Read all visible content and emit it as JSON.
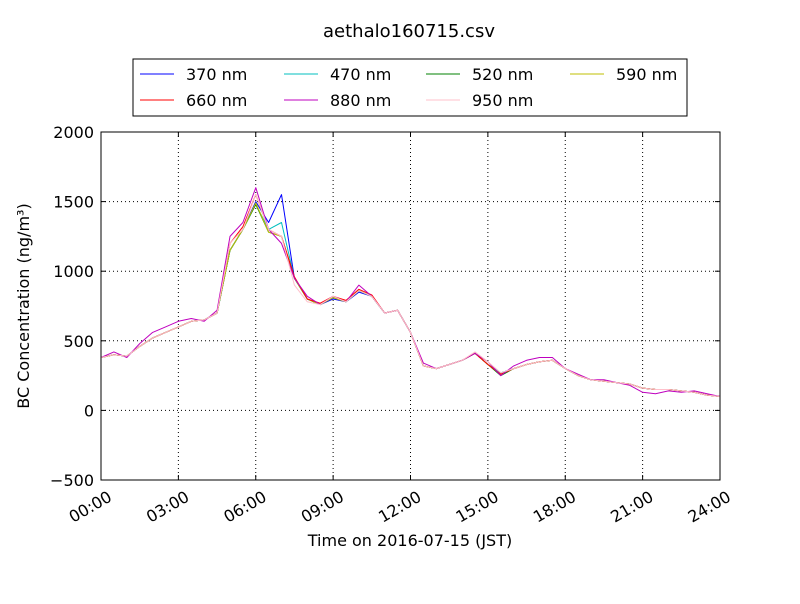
{
  "chart_data": {
    "type": "line",
    "title": "aethalo160715.csv",
    "xlabel": "Time on 2016-07-15 (JST)",
    "ylabel": "BC Concentration (ng/m³)",
    "x_unit": "hours",
    "xlim": [
      0,
      24
    ],
    "ylim": [
      -500,
      2000
    ],
    "x_ticks": [
      0,
      3,
      6,
      9,
      12,
      15,
      18,
      21,
      24
    ],
    "x_tick_labels": [
      "00:00",
      "03:00",
      "06:00",
      "09:00",
      "12:00",
      "15:00",
      "18:00",
      "21:00",
      "24:00"
    ],
    "y_ticks": [
      -500,
      0,
      500,
      1000,
      1500,
      2000
    ],
    "y_tick_labels": [
      "−500",
      "0",
      "500",
      "1000",
      "1500",
      "2000"
    ],
    "grid": true,
    "legend_placement": "top-center",
    "legend_columns": 4,
    "x": [
      0,
      0.5,
      1,
      1.5,
      2,
      2.5,
      3,
      3.5,
      4,
      4.5,
      5,
      5.5,
      6,
      6.5,
      7,
      7.5,
      8,
      8.5,
      9,
      9.5,
      10,
      10.5,
      11,
      11.5,
      12,
      12.5,
      13,
      13.5,
      14,
      14.5,
      15,
      15.5,
      16,
      16.5,
      17,
      17.5,
      18,
      18.5,
      19,
      19.5,
      20,
      20.5,
      21,
      21.5,
      22,
      22.5,
      23,
      23.5,
      24
    ],
    "series": [
      {
        "name": "370 nm",
        "color": "#0000ff",
        "values": [
          380,
          400,
          390,
          460,
          520,
          560,
          600,
          640,
          650,
          700,
          1150,
          1300,
          1500,
          1350,
          1550,
          950,
          800,
          760,
          800,
          780,
          850,
          820,
          700,
          720,
          560,
          320,
          300,
          330,
          360,
          410,
          330,
          270,
          300,
          330,
          350,
          360,
          300,
          250,
          220,
          210,
          200,
          190,
          160,
          150,
          150,
          140,
          130,
          110,
          100
        ]
      },
      {
        "name": "470 nm",
        "color": "#00bfbf",
        "values": [
          380,
          400,
          390,
          460,
          520,
          560,
          600,
          640,
          650,
          700,
          1150,
          1300,
          1480,
          1300,
          1350,
          950,
          800,
          760,
          810,
          780,
          860,
          820,
          700,
          720,
          560,
          320,
          300,
          330,
          360,
          410,
          330,
          270,
          300,
          330,
          350,
          360,
          300,
          250,
          220,
          210,
          200,
          190,
          160,
          150,
          150,
          140,
          130,
          110,
          100
        ]
      },
      {
        "name": "520 nm",
        "color": "#008000",
        "values": [
          380,
          400,
          390,
          460,
          520,
          560,
          600,
          640,
          650,
          700,
          1150,
          1300,
          1480,
          1280,
          1250,
          950,
          800,
          760,
          810,
          780,
          860,
          820,
          700,
          720,
          560,
          320,
          300,
          330,
          360,
          410,
          330,
          250,
          300,
          330,
          350,
          360,
          300,
          250,
          220,
          210,
          200,
          190,
          160,
          150,
          150,
          140,
          130,
          110,
          100
        ]
      },
      {
        "name": "590 nm",
        "color": "#bfbf00",
        "values": [
          380,
          400,
          390,
          460,
          520,
          560,
          600,
          640,
          650,
          700,
          1150,
          1300,
          1490,
          1280,
          1250,
          950,
          800,
          760,
          810,
          780,
          860,
          820,
          700,
          720,
          560,
          320,
          300,
          330,
          360,
          410,
          330,
          260,
          300,
          330,
          350,
          360,
          300,
          250,
          220,
          210,
          200,
          190,
          160,
          150,
          150,
          140,
          130,
          110,
          100
        ]
      },
      {
        "name": "660 nm",
        "color": "#ff0000",
        "values": [
          380,
          400,
          390,
          460,
          520,
          560,
          600,
          640,
          650,
          700,
          1200,
          1320,
          1550,
          1300,
          1250,
          960,
          800,
          770,
          820,
          790,
          870,
          830,
          700,
          720,
          560,
          320,
          300,
          330,
          360,
          410,
          330,
          260,
          300,
          330,
          350,
          360,
          300,
          250,
          220,
          210,
          200,
          190,
          160,
          150,
          150,
          140,
          130,
          110,
          100
        ]
      },
      {
        "name": "880 nm",
        "color": "#bf00bf",
        "values": [
          380,
          420,
          380,
          480,
          560,
          600,
          640,
          660,
          640,
          720,
          1250,
          1350,
          1600,
          1300,
          1200,
          950,
          820,
          760,
          820,
          780,
          900,
          820,
          700,
          720,
          560,
          340,
          300,
          330,
          360,
          410,
          350,
          250,
          320,
          360,
          380,
          380,
          300,
          260,
          220,
          220,
          200,
          180,
          130,
          120,
          140,
          130,
          140,
          120,
          100
        ]
      },
      {
        "name": "950 nm",
        "color": "#ffc0cb",
        "values": [
          380,
          400,
          390,
          460,
          520,
          560,
          600,
          640,
          650,
          700,
          1200,
          1300,
          1550,
          1300,
          1250,
          900,
          780,
          760,
          820,
          780,
          860,
          820,
          700,
          720,
          560,
          320,
          300,
          330,
          360,
          420,
          350,
          270,
          300,
          330,
          350,
          360,
          300,
          250,
          220,
          210,
          200,
          190,
          160,
          150,
          150,
          140,
          130,
          110,
          100
        ]
      }
    ]
  }
}
